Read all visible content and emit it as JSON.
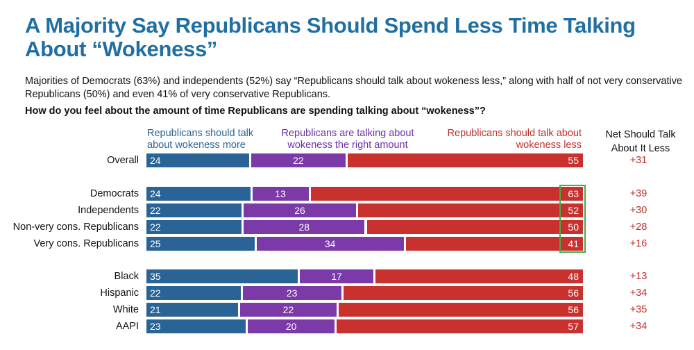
{
  "title": "A Majority Say Republicans Should Spend Less Time Talking About “Wokeness”",
  "subtitle": "Majorities of Democrats (63%) and independents (52%) say “Republicans should talk about wokeness less,” along with half of not very conservative Republicans (50%) and even 41% of very conservative Republicans.",
  "question": "How do you feel about the amount of time Republicans are spending talking about “wokeness”?",
  "legend": {
    "more": "Republicans should talk about wokeness more",
    "right": "Republicans are talking about wokeness the right amount",
    "less": "Republicans should talk about wokeness less",
    "net": "Net Should Talk About It Less"
  },
  "colors": {
    "more": "#2a6496",
    "right": "#7b3aa8",
    "less": "#c9312e",
    "net_text": "#c0302c",
    "highlight": "#3fae49",
    "title": "#1f6fa3"
  },
  "chart_data": {
    "type": "bar",
    "orientation": "horizontal",
    "stacked": true,
    "series": [
      {
        "name": "Republicans should talk about wokeness more",
        "values": [
          24,
          24,
          22,
          22,
          25,
          35,
          22,
          21,
          23
        ]
      },
      {
        "name": "Republicans are talking about wokeness the right amount",
        "values": [
          22,
          13,
          26,
          28,
          34,
          17,
          23,
          22,
          20
        ]
      },
      {
        "name": "Republicans should talk about wokeness less",
        "values": [
          55,
          63,
          52,
          50,
          41,
          48,
          56,
          56,
          57
        ]
      }
    ],
    "rows": [
      {
        "label": "Overall",
        "more": 24,
        "right": 22,
        "less": 55,
        "net": "+31",
        "group": 0
      },
      {
        "label": "Democrats",
        "more": 24,
        "right": 13,
        "less": 63,
        "net": "+39",
        "group": 1
      },
      {
        "label": "Independents",
        "more": 22,
        "right": 26,
        "less": 52,
        "net": "+30",
        "group": 1
      },
      {
        "label": "Non-very cons. Republicans",
        "more": 22,
        "right": 28,
        "less": 50,
        "net": "+28",
        "group": 1
      },
      {
        "label": "Very cons. Republicans",
        "more": 25,
        "right": 34,
        "less": 41,
        "net": "+16",
        "group": 1
      },
      {
        "label": "Black",
        "more": 35,
        "right": 17,
        "less": 48,
        "net": "+13",
        "group": 2
      },
      {
        "label": "Hispanic",
        "more": 22,
        "right": 23,
        "less": 56,
        "net": "+34",
        "group": 2
      },
      {
        "label": "White",
        "more": 21,
        "right": 22,
        "less": 56,
        "net": "+35",
        "group": 2
      },
      {
        "label": "AAPI",
        "more": 23,
        "right": 20,
        "less": 57,
        "net": "+34",
        "group": 2
      }
    ],
    "highlighted_rows": [
      "Democrats",
      "Independents",
      "Non-very cons. Republicans",
      "Very cons. Republicans"
    ],
    "highlighted_segment": "less"
  }
}
